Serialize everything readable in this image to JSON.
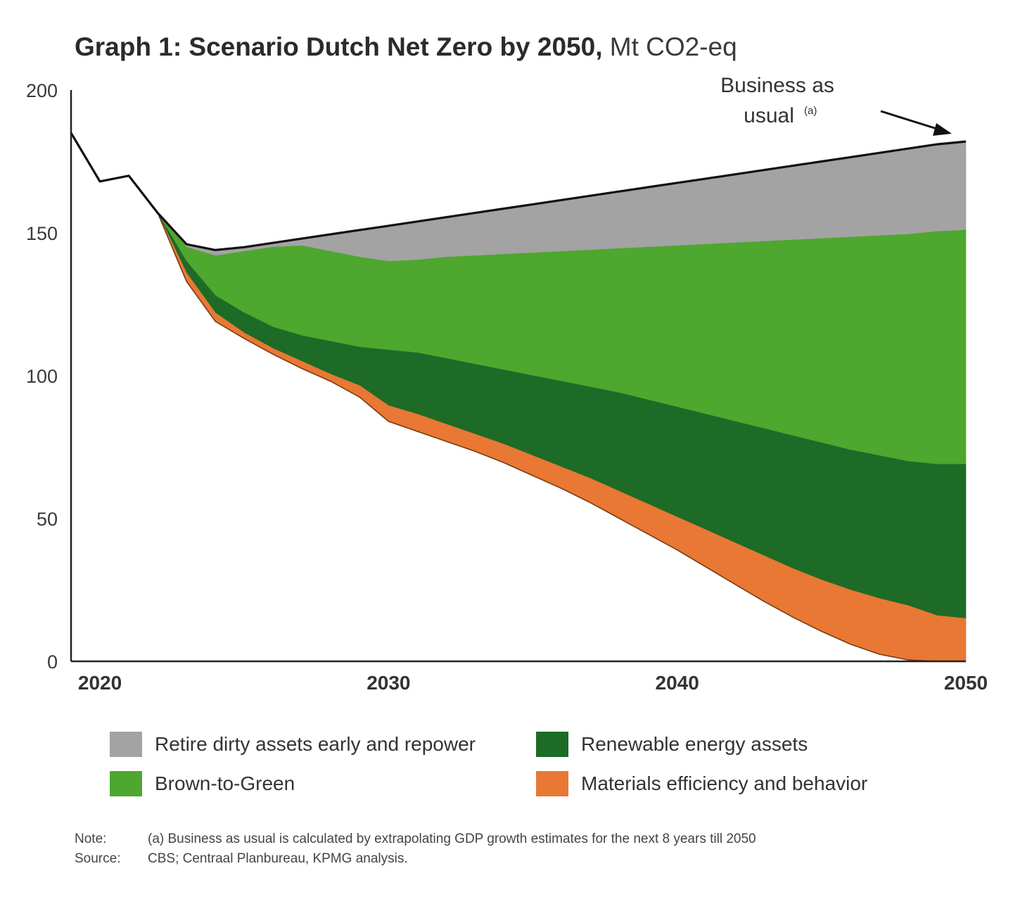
{
  "title": {
    "main": "Graph 1: Scenario Dutch Net Zero by 2050,",
    "unit": "Mt CO2-eq"
  },
  "colors": {
    "gray": "#a3a3a3",
    "light_green": "#4ea72e",
    "dark_green": "#1d6b26",
    "orange": "#e87834",
    "line": "#111111",
    "axis": "#222222"
  },
  "chart_data": {
    "type": "area",
    "title": "Graph 1: Scenario Dutch Net Zero by 2050, Mt CO2-eq",
    "xlabel": "",
    "ylabel": "Mt CO2-eq",
    "xlim": [
      2019,
      2050
    ],
    "ylim": [
      0,
      200
    ],
    "x_ticks": [
      "2020",
      "2030",
      "2040",
      "2050"
    ],
    "y_ticks": [
      "0",
      "50",
      "100",
      "150",
      "200"
    ],
    "x": [
      2019,
      2020,
      2021,
      2022,
      2023,
      2024,
      2025,
      2026,
      2027,
      2028,
      2029,
      2030,
      2031,
      2032,
      2033,
      2034,
      2035,
      2036,
      2037,
      2038,
      2039,
      2040,
      2041,
      2042,
      2043,
      2044,
      2045,
      2046,
      2047,
      2048,
      2049,
      2050
    ],
    "business_as_usual": [
      185,
      168,
      170,
      157,
      146,
      144,
      145,
      146.5,
      148,
      149.5,
      151,
      152.5,
      154,
      155.5,
      157,
      158.5,
      160,
      161.5,
      163,
      164.5,
      166,
      167.5,
      169,
      170.5,
      172,
      173.5,
      175,
      176.5,
      178,
      179.5,
      181,
      182
    ],
    "series": [
      {
        "name": "Retire dirty assets early and repower",
        "color": "#a3a3a3",
        "upper": "business_as_usual",
        "lower": [
          185,
          168,
          170,
          157,
          145,
          142,
          143.5,
          145,
          145.5,
          143.5,
          141.5,
          140,
          140.5,
          141.5,
          142,
          142.5,
          143,
          143.5,
          144,
          144.5,
          145,
          145.5,
          146,
          146.5,
          147,
          147.5,
          148,
          148.5,
          149,
          149.5,
          150.5,
          151
        ]
      },
      {
        "name": "Brown-to-Green",
        "color": "#4ea72e",
        "lower": [
          185,
          168,
          170,
          157,
          140,
          128,
          122,
          117,
          114,
          112,
          110,
          109,
          108,
          106,
          104,
          102,
          100,
          98,
          96,
          94,
          91.5,
          89,
          86.5,
          84,
          81.5,
          79,
          76.5,
          74,
          72,
          70,
          69,
          69
        ]
      },
      {
        "name": "Renewable energy assets",
        "color": "#1d6b26",
        "lower": [
          185,
          168,
          170,
          157,
          136,
          122,
          115,
          109.5,
          105,
          100.5,
          96.5,
          89.5,
          86.5,
          83,
          79.5,
          76,
          72,
          68,
          64,
          59.5,
          55,
          50.5,
          46,
          41.5,
          37,
          32.5,
          28.5,
          25,
          22,
          19.5,
          16,
          15
        ]
      },
      {
        "name": "Materials efficiency and behavior",
        "color": "#e87834",
        "lower": [
          185,
          168,
          170,
          157,
          133,
          119,
          113,
          107.5,
          102.5,
          98,
          92.5,
          84,
          80.5,
          77,
          73.5,
          69.5,
          65,
          60.5,
          55.5,
          50,
          44.5,
          39,
          33,
          27,
          21,
          15.5,
          10.5,
          6,
          2.5,
          0.5,
          0,
          0
        ]
      }
    ],
    "annotation": {
      "text_line1": "Business as",
      "text_line2": "usual",
      "superscript": "(a)"
    }
  },
  "legend": [
    {
      "label": "Retire dirty assets early and repower",
      "color": "#a3a3a3"
    },
    {
      "label": "Renewable energy assets",
      "color": "#1d6b26"
    },
    {
      "label": "Brown-to-Green",
      "color": "#4ea72e"
    },
    {
      "label": "Materials efficiency and behavior",
      "color": "#e87834"
    }
  ],
  "notes": {
    "note_label": "Note:",
    "note_text": "(a)   Business as usual is calculated by extrapolating GDP growth estimates for the next 8 years till  2050",
    "source_label": "Source:",
    "source_text": "CBS; Centraal Planbureau, KPMG analysis."
  }
}
